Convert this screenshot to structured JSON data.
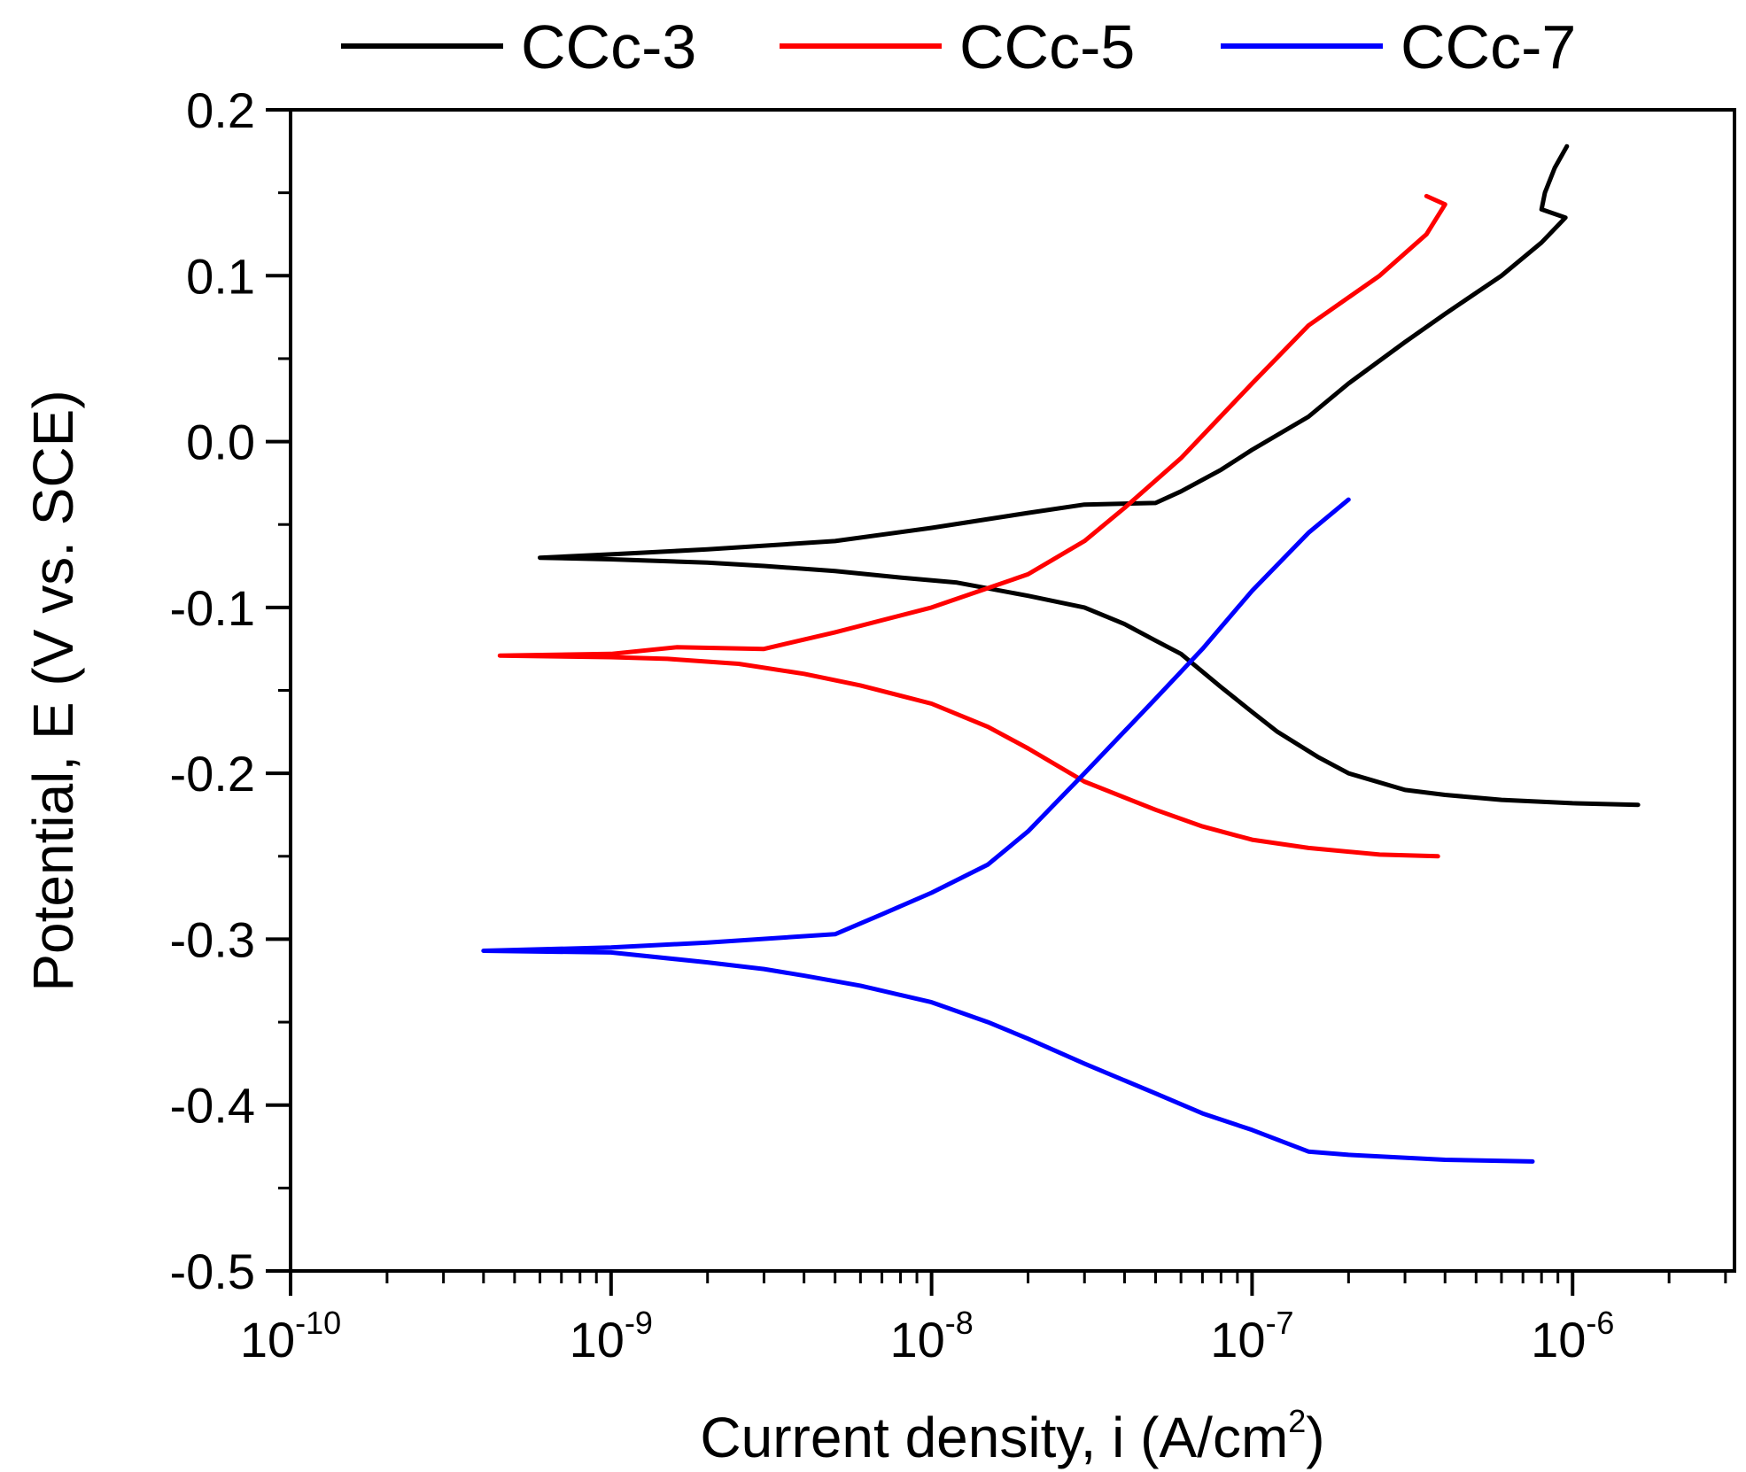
{
  "chart_data": {
    "type": "line",
    "xlabel": "Current density, i (A/cm",
    "xlabel_sup": "2",
    "xlabel_end": ")",
    "ylabel": "Potential, E (V vs. SCE)",
    "x_scale": "log",
    "xlim": [
      1e-10,
      3.2e-06
    ],
    "ylim": [
      -0.5,
      0.2
    ],
    "x_ticks": [
      {
        "value": 1e-10,
        "base": "10",
        "exp": "-10"
      },
      {
        "value": 1e-09,
        "base": "10",
        "exp": "-9"
      },
      {
        "value": 1e-08,
        "base": "10",
        "exp": "-8"
      },
      {
        "value": 1e-07,
        "base": "10",
        "exp": "-7"
      },
      {
        "value": 1e-06,
        "base": "10",
        "exp": "-6"
      }
    ],
    "y_ticks": [
      {
        "value": 0.2,
        "label": "0.2"
      },
      {
        "value": 0.1,
        "label": "0.1"
      },
      {
        "value": 0.0,
        "label": "0.0"
      },
      {
        "value": -0.1,
        "label": "-0.1"
      },
      {
        "value": -0.2,
        "label": "-0.2"
      },
      {
        "value": -0.3,
        "label": "-0.3"
      },
      {
        "value": -0.4,
        "label": "-0.4"
      },
      {
        "value": -0.5,
        "label": "-0.5"
      }
    ],
    "grid": false,
    "legend_position": "top",
    "series": [
      {
        "name": "CCc-3",
        "color": "#000000",
        "points": [
          [
            1.6e-06,
            -0.219
          ],
          [
            1e-06,
            -0.218
          ],
          [
            6e-07,
            -0.216
          ],
          [
            4e-07,
            -0.213
          ],
          [
            3e-07,
            -0.21
          ],
          [
            2e-07,
            -0.2
          ],
          [
            1.6e-07,
            -0.19
          ],
          [
            1.2e-07,
            -0.175
          ],
          [
            1e-07,
            -0.163
          ],
          [
            8e-08,
            -0.148
          ],
          [
            6e-08,
            -0.128
          ],
          [
            5e-08,
            -0.12
          ],
          [
            4e-08,
            -0.11
          ],
          [
            3e-08,
            -0.1
          ],
          [
            2e-08,
            -0.093
          ],
          [
            1.2e-08,
            -0.085
          ],
          [
            8e-09,
            -0.082
          ],
          [
            5e-09,
            -0.078
          ],
          [
            3e-09,
            -0.075
          ],
          [
            2e-09,
            -0.073
          ],
          [
            1e-09,
            -0.071
          ],
          [
            6e-10,
            -0.07
          ],
          [
            1e-09,
            -0.068
          ],
          [
            2e-09,
            -0.065
          ],
          [
            5e-09,
            -0.06
          ],
          [
            1e-08,
            -0.052
          ],
          [
            2e-08,
            -0.043
          ],
          [
            3e-08,
            -0.038
          ],
          [
            5e-08,
            -0.037
          ],
          [
            6e-08,
            -0.03
          ],
          [
            8e-08,
            -0.017
          ],
          [
            1e-07,
            -0.005
          ],
          [
            1.5e-07,
            0.015
          ],
          [
            2e-07,
            0.035
          ],
          [
            3e-07,
            0.06
          ],
          [
            4e-07,
            0.077
          ],
          [
            6e-07,
            0.1
          ],
          [
            8e-07,
            0.12
          ],
          [
            9.5e-07,
            0.135
          ],
          [
            8e-07,
            0.14
          ],
          [
            8.2e-07,
            0.15
          ],
          [
            8.8e-07,
            0.165
          ],
          [
            9.6e-07,
            0.178
          ]
        ]
      },
      {
        "name": "CCc-5",
        "color": "#ff0000",
        "points": [
          [
            3.8e-07,
            -0.25
          ],
          [
            2.5e-07,
            -0.249
          ],
          [
            1.5e-07,
            -0.245
          ],
          [
            1e-07,
            -0.24
          ],
          [
            7e-08,
            -0.232
          ],
          [
            5e-08,
            -0.222
          ],
          [
            3e-08,
            -0.205
          ],
          [
            2e-08,
            -0.185
          ],
          [
            1.5e-08,
            -0.172
          ],
          [
            1e-08,
            -0.158
          ],
          [
            6e-09,
            -0.147
          ],
          [
            4e-09,
            -0.14
          ],
          [
            2.5e-09,
            -0.134
          ],
          [
            1.5e-09,
            -0.131
          ],
          [
            1e-09,
            -0.13
          ],
          [
            4.5e-10,
            -0.129
          ],
          [
            1e-09,
            -0.128
          ],
          [
            1.6e-09,
            -0.124
          ],
          [
            3e-09,
            -0.125
          ],
          [
            5e-09,
            -0.115
          ],
          [
            1e-08,
            -0.1
          ],
          [
            2e-08,
            -0.08
          ],
          [
            3e-08,
            -0.06
          ],
          [
            4e-08,
            -0.04
          ],
          [
            6e-08,
            -0.01
          ],
          [
            1e-07,
            0.035
          ],
          [
            1.5e-07,
            0.07
          ],
          [
            2.5e-07,
            0.1
          ],
          [
            3.5e-07,
            0.125
          ],
          [
            4e-07,
            0.143
          ],
          [
            3.5e-07,
            0.148
          ]
        ]
      },
      {
        "name": "CCc-7",
        "color": "#0000ff",
        "points": [
          [
            7.5e-07,
            -0.434
          ],
          [
            4e-07,
            -0.433
          ],
          [
            2e-07,
            -0.43
          ],
          [
            1.5e-07,
            -0.428
          ],
          [
            1e-07,
            -0.415
          ],
          [
            7e-08,
            -0.405
          ],
          [
            5e-08,
            -0.393
          ],
          [
            3e-08,
            -0.375
          ],
          [
            2e-08,
            -0.36
          ],
          [
            1.5e-08,
            -0.35
          ],
          [
            1e-08,
            -0.338
          ],
          [
            6e-09,
            -0.328
          ],
          [
            4e-09,
            -0.322
          ],
          [
            3e-09,
            -0.318
          ],
          [
            2e-09,
            -0.314
          ],
          [
            1e-09,
            -0.308
          ],
          [
            4e-10,
            -0.307
          ],
          [
            1e-09,
            -0.305
          ],
          [
            2e-09,
            -0.302
          ],
          [
            5e-09,
            -0.297
          ],
          [
            7e-09,
            -0.285
          ],
          [
            1e-08,
            -0.272
          ],
          [
            1.5e-08,
            -0.255
          ],
          [
            2e-08,
            -0.235
          ],
          [
            3e-08,
            -0.2
          ],
          [
            5e-08,
            -0.155
          ],
          [
            7e-08,
            -0.125
          ],
          [
            1e-07,
            -0.09
          ],
          [
            1.5e-07,
            -0.055
          ],
          [
            2e-07,
            -0.035
          ]
        ]
      }
    ]
  }
}
